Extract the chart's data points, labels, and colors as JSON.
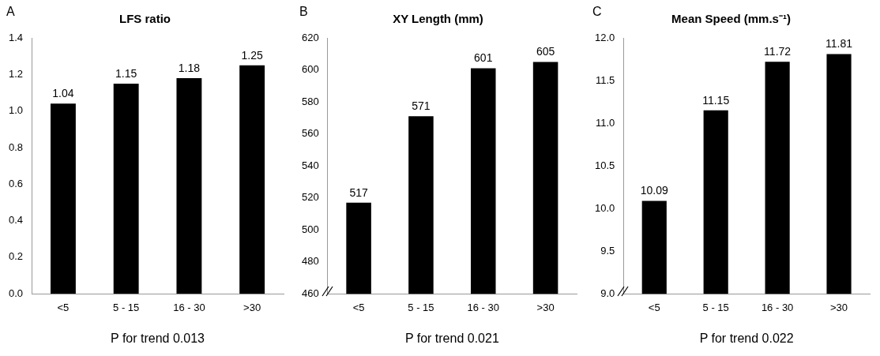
{
  "chart_data": [
    {
      "type": "bar",
      "title": "LFS ratio",
      "xlabel": "P for trend 0.013",
      "annotations": [
        "A"
      ],
      "categories": [
        "<5",
        "5 - 15",
        "16 - 30",
        ">30"
      ],
      "values": [
        1.04,
        1.15,
        1.18,
        1.25
      ],
      "color": "#000000",
      "data_labels": true,
      "grid": false,
      "legend": false,
      "ylim": [
        0,
        1.4
      ],
      "yticks": [
        {
          "value": 0,
          "label": "0.0"
        },
        {
          "value": 0.2,
          "label": "0.2"
        },
        {
          "value": 0.4,
          "label": "0.4"
        },
        {
          "value": 0.6,
          "label": "0.6"
        },
        {
          "value": 0.8,
          "label": "0.8"
        },
        {
          "value": 1,
          "label": "1.0"
        },
        {
          "value": 1.2,
          "label": "1.2"
        },
        {
          "value": 1.4,
          "label": "1.4"
        }
      ]
    },
    {
      "type": "bar",
      "title": "XY Length (mm)",
      "xlabel": "P for trend 0.021",
      "annotations": [
        "B"
      ],
      "categories": [
        "<5",
        "5 - 15",
        "16 - 30",
        ">30"
      ],
      "values": [
        517,
        571,
        601,
        605
      ],
      "color": "#000000",
      "data_labels": true,
      "grid": false,
      "legend": false,
      "ylim": [
        460,
        620
      ],
      "yticks": [
        460,
        480,
        500,
        520,
        540,
        560,
        580,
        600,
        620
      ]
    },
    {
      "type": "bar",
      "title": "Mean Speed (mm.s⁻¹)",
      "xlabel": "P for trend 0.022",
      "annotations": [
        "C"
      ],
      "categories": [
        "<5",
        "5 - 15",
        "16 - 30",
        ">30"
      ],
      "values": [
        10.09,
        11.15,
        11.72,
        11.81
      ],
      "color": "#000000",
      "data_labels": true,
      "grid": false,
      "legend": false,
      "ylim": [
        9,
        12
      ],
      "yticks": [
        {
          "value": 9,
          "label": "9.0"
        },
        {
          "value": 9.5,
          "label": "9.5"
        },
        {
          "value": 10,
          "label": "10.0"
        },
        {
          "value": 10.5,
          "label": "10.5"
        },
        {
          "value": 11,
          "label": "11.0"
        },
        {
          "value": 11.5,
          "label": "11.5"
        },
        {
          "value": 12,
          "label": "12.0"
        }
      ]
    }
  ]
}
